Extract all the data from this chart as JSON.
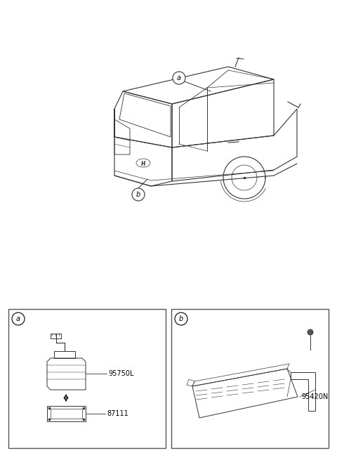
{
  "bg_color": "#ffffff",
  "line_color": "#333333",
  "text_color": "#000000",
  "fig_width": 4.8,
  "fig_height": 6.55,
  "dpi": 100,
  "label_a": "a",
  "label_b": "b",
  "part_95750L": "95750L",
  "part_87111": "87111",
  "part_95420N": "95420N"
}
